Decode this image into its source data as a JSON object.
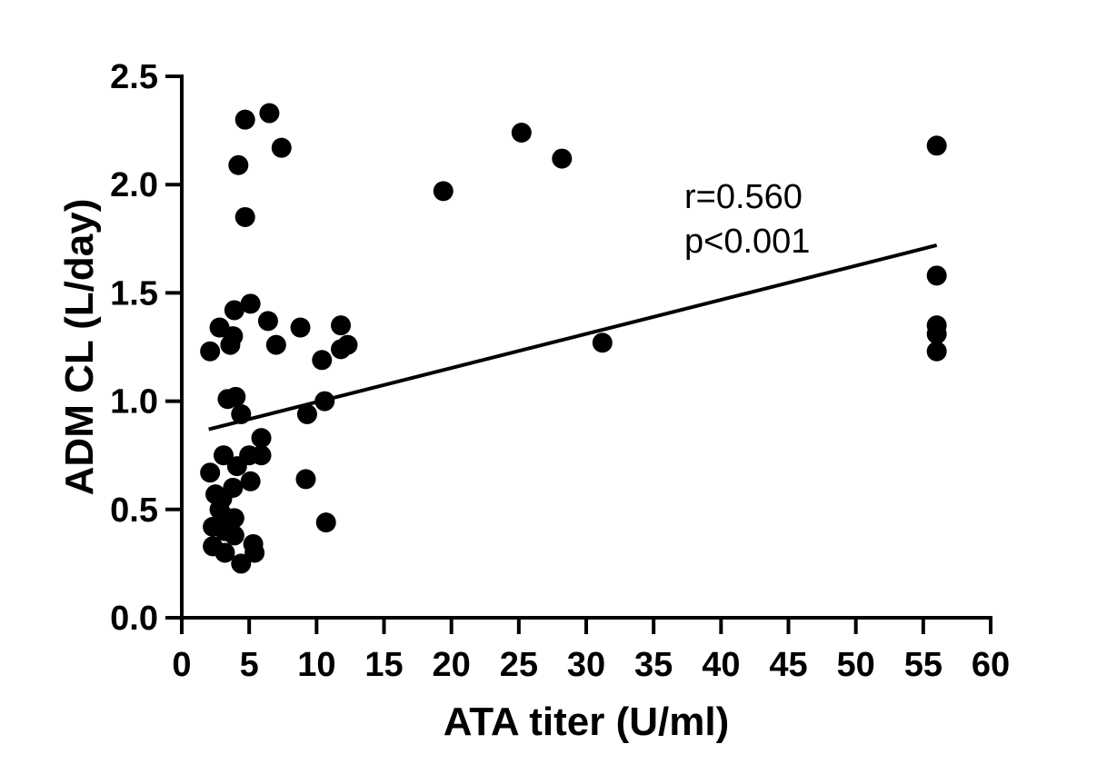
{
  "chart_data": {
    "type": "scatter",
    "title": "",
    "xlabel": "ATA titer (U/ml)",
    "ylabel": "ADM CL (L/day)",
    "xlim": [
      0,
      60
    ],
    "ylim": [
      0,
      2.5
    ],
    "xticks": [
      "0",
      "5",
      "10",
      "15",
      "20",
      "25",
      "30",
      "35",
      "40",
      "45",
      "50",
      "55",
      "60"
    ],
    "yticks": [
      "0.0",
      "0.5",
      "1.0",
      "1.5",
      "2.0",
      "2.5"
    ],
    "grid": false,
    "annotations": [
      "r=0.560",
      "p<0.001"
    ],
    "regression_line": {
      "x": [
        2.0,
        56.0
      ],
      "y": [
        0.87,
        1.72
      ]
    },
    "points": [
      {
        "x": 4.7,
        "y": 2.3
      },
      {
        "x": 6.5,
        "y": 2.33
      },
      {
        "x": 7.4,
        "y": 2.17
      },
      {
        "x": 4.2,
        "y": 2.09
      },
      {
        "x": 4.7,
        "y": 1.85
      },
      {
        "x": 19.4,
        "y": 1.97
      },
      {
        "x": 25.2,
        "y": 2.24
      },
      {
        "x": 28.2,
        "y": 2.12
      },
      {
        "x": 56.0,
        "y": 2.18
      },
      {
        "x": 56.0,
        "y": 1.58
      },
      {
        "x": 56.0,
        "y": 1.35
      },
      {
        "x": 56.0,
        "y": 1.31
      },
      {
        "x": 56.0,
        "y": 1.23
      },
      {
        "x": 31.2,
        "y": 1.27
      },
      {
        "x": 5.1,
        "y": 1.45
      },
      {
        "x": 3.9,
        "y": 1.42
      },
      {
        "x": 6.4,
        "y": 1.37
      },
      {
        "x": 2.8,
        "y": 1.34
      },
      {
        "x": 8.8,
        "y": 1.34
      },
      {
        "x": 11.8,
        "y": 1.35
      },
      {
        "x": 3.8,
        "y": 1.3
      },
      {
        "x": 3.6,
        "y": 1.26
      },
      {
        "x": 7.0,
        "y": 1.26
      },
      {
        "x": 12.3,
        "y": 1.26
      },
      {
        "x": 11.8,
        "y": 1.24
      },
      {
        "x": 2.1,
        "y": 1.23
      },
      {
        "x": 10.4,
        "y": 1.19
      },
      {
        "x": 3.4,
        "y": 1.01
      },
      {
        "x": 4.0,
        "y": 1.02
      },
      {
        "x": 10.6,
        "y": 1.0
      },
      {
        "x": 4.4,
        "y": 0.94
      },
      {
        "x": 9.3,
        "y": 0.94
      },
      {
        "x": 5.9,
        "y": 0.83
      },
      {
        "x": 3.1,
        "y": 0.75
      },
      {
        "x": 5.0,
        "y": 0.75
      },
      {
        "x": 5.9,
        "y": 0.75
      },
      {
        "x": 2.1,
        "y": 0.67
      },
      {
        "x": 4.1,
        "y": 0.7
      },
      {
        "x": 9.2,
        "y": 0.64
      },
      {
        "x": 5.1,
        "y": 0.63
      },
      {
        "x": 3.8,
        "y": 0.6
      },
      {
        "x": 2.5,
        "y": 0.57
      },
      {
        "x": 3.0,
        "y": 0.55
      },
      {
        "x": 2.8,
        "y": 0.5
      },
      {
        "x": 3.1,
        "y": 0.47
      },
      {
        "x": 3.9,
        "y": 0.46
      },
      {
        "x": 10.7,
        "y": 0.44
      },
      {
        "x": 2.3,
        "y": 0.42
      },
      {
        "x": 3.2,
        "y": 0.4
      },
      {
        "x": 3.9,
        "y": 0.38
      },
      {
        "x": 5.3,
        "y": 0.34
      },
      {
        "x": 2.3,
        "y": 0.33
      },
      {
        "x": 3.2,
        "y": 0.3
      },
      {
        "x": 5.4,
        "y": 0.3
      },
      {
        "x": 4.4,
        "y": 0.25
      }
    ]
  }
}
